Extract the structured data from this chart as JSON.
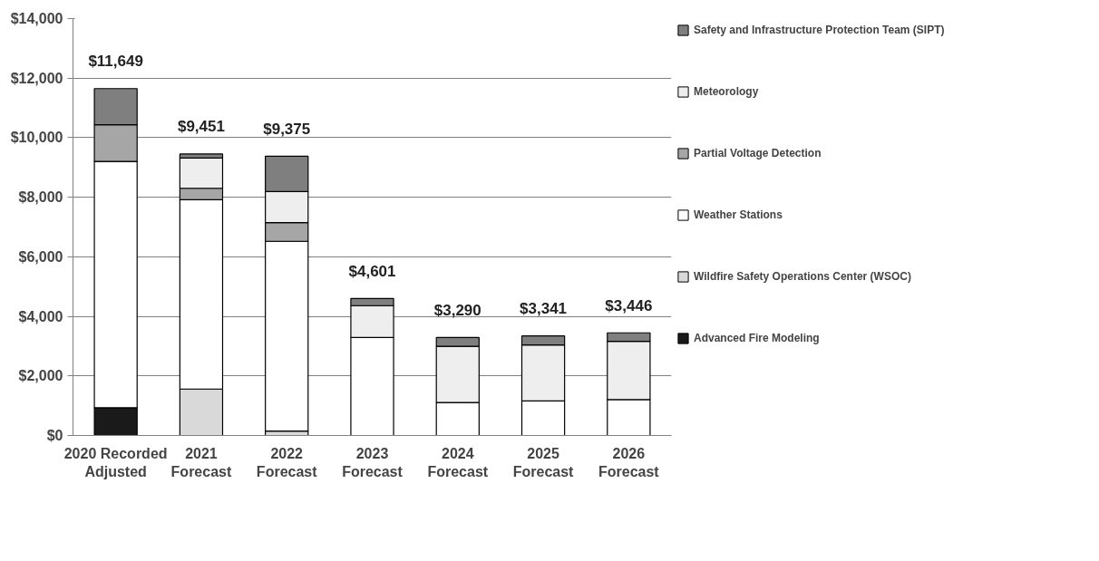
{
  "chart_data": {
    "type": "bar",
    "stacked": true,
    "categories": [
      "2020 Recorded\nAdjusted",
      "2021\nForecast",
      "2022\nForecast",
      "2023\nForecast",
      "2024\nForecast",
      "2025\nForecast",
      "2026\nForecast"
    ],
    "series": [
      {
        "name": "Advanced Fire Modeling",
        "color": "#1a1a1a",
        "values": [
          930,
          null,
          null,
          null,
          null,
          null,
          null
        ]
      },
      {
        "name": "Wildfire Safety Operations Center (WSOC)",
        "color": "#d9d9d9",
        "values": [
          null,
          1560,
          150,
          null,
          null,
          null,
          null
        ]
      },
      {
        "name": "Weather Stations",
        "color": "#ffffff",
        "values": [
          8275,
          6358,
          6370,
          3290,
          1110,
          1160,
          1205
        ]
      },
      {
        "name": "Partial Voltage Detection",
        "color": "#a6a6a6",
        "values": [
          1233,
          383,
          630,
          null,
          null,
          null,
          null
        ]
      },
      {
        "name": "Meteorology",
        "color": "#eeeeee",
        "values": [
          null,
          1014,
          1040,
          1070,
          1887,
          1880,
          1955
        ]
      },
      {
        "name": "Safety and Infrastructure Protection Team (SIPT)",
        "color": "#7f7f7f",
        "values": [
          1211,
          136,
          1185,
          241,
          293,
          301,
          286
        ]
      }
    ],
    "totals": [
      "$11,649",
      "$9,451",
      "$9,375",
      "$4,601",
      "$3,290",
      "$3,341",
      "$3,446"
    ],
    "ylim": [
      0,
      14000
    ],
    "yticks": [
      {
        "value": 0,
        "label": "$0"
      },
      {
        "value": 2000,
        "label": "$2,000"
      },
      {
        "value": 4000,
        "label": "$4,000"
      },
      {
        "value": 6000,
        "label": "$6,000"
      },
      {
        "value": 8000,
        "label": "$8,000"
      },
      {
        "value": 10000,
        "label": "$10,000"
      },
      {
        "value": 12000,
        "label": "$12,000"
      },
      {
        "value": 14000,
        "label": "$14,000"
      }
    ],
    "grid": "y",
    "legend": "right"
  }
}
